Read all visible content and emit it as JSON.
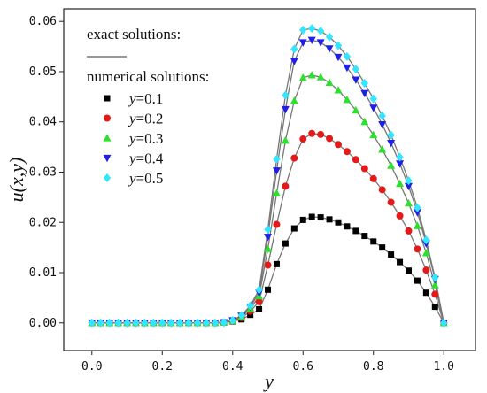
{
  "chart_data": {
    "type": "scatter",
    "xlabel": "y",
    "ylabel": "u(x,y)",
    "xlim": [
      -0.08,
      1.09
    ],
    "ylim": [
      -0.0055,
      0.0625
    ],
    "xticks": [
      0.0,
      0.2,
      0.4,
      0.6,
      0.8,
      1.0
    ],
    "xtick_labels": [
      "0.0",
      "0.2",
      "0.4",
      "0.6",
      "0.8",
      "1.0"
    ],
    "yticks": [
      0.0,
      0.01,
      0.02,
      0.03,
      0.04,
      0.05,
      0.06
    ],
    "ytick_labels": [
      "0.00",
      "0.01",
      "0.02",
      "0.03",
      "0.04",
      "0.05",
      "0.06"
    ],
    "grid": false,
    "legend_position": "top-left",
    "legend": {
      "exact_label": "exact solutions:",
      "numerical_label": "numerical solutions:"
    },
    "exact_line_color": "#777777",
    "x": [
      0.0,
      0.025,
      0.05,
      0.075,
      0.1,
      0.125,
      0.15,
      0.175,
      0.2,
      0.225,
      0.25,
      0.275,
      0.3,
      0.325,
      0.35,
      0.375,
      0.4,
      0.425,
      0.45,
      0.475,
      0.5,
      0.525,
      0.55,
      0.575,
      0.6,
      0.625,
      0.65,
      0.675,
      0.7,
      0.725,
      0.75,
      0.775,
      0.8,
      0.825,
      0.85,
      0.875,
      0.9,
      0.925,
      0.95,
      0.975,
      1.0
    ],
    "series": [
      {
        "name": "0.1",
        "marker": "square",
        "color": "#000000",
        "values": [
          0,
          0,
          0,
          0,
          0,
          0,
          0,
          0,
          0,
          0,
          0,
          0,
          0,
          0,
          0,
          0.0001,
          0.0003,
          0.0007,
          0.0016,
          0.0027,
          0.0066,
          0.0117,
          0.0158,
          0.0188,
          0.0205,
          0.0211,
          0.021,
          0.0206,
          0.02,
          0.0192,
          0.0183,
          0.0173,
          0.0162,
          0.015,
          0.0136,
          0.0121,
          0.0104,
          0.0084,
          0.006,
          0.0032,
          0
        ]
      },
      {
        "name": "0.2",
        "marker": "circle",
        "color": "#e41a1a",
        "values": [
          0,
          0,
          0,
          0,
          0,
          0,
          0,
          0,
          0,
          0,
          0,
          0,
          0,
          0,
          0,
          0.0001,
          0.0003,
          0.001,
          0.0023,
          0.0042,
          0.0115,
          0.0196,
          0.0272,
          0.0328,
          0.0366,
          0.0377,
          0.0375,
          0.0367,
          0.0355,
          0.0341,
          0.0325,
          0.0307,
          0.0287,
          0.0265,
          0.024,
          0.0213,
          0.0183,
          0.0147,
          0.0105,
          0.0057,
          0
        ]
      },
      {
        "name": "0.3",
        "marker": "triangle-up",
        "color": "#2ee02e",
        "values": [
          0,
          0,
          0,
          0,
          0,
          0,
          0,
          0,
          0,
          0,
          0,
          0,
          0,
          0,
          0,
          0.0001,
          0.0004,
          0.0012,
          0.0028,
          0.0053,
          0.0147,
          0.0258,
          0.0363,
          0.0442,
          0.0488,
          0.0493,
          0.0489,
          0.0478,
          0.0463,
          0.0444,
          0.0423,
          0.04,
          0.0374,
          0.0345,
          0.0313,
          0.0277,
          0.0238,
          0.0193,
          0.0139,
          0.0075,
          0
        ]
      },
      {
        "name": "0.4",
        "marker": "triangle-down",
        "color": "#1f1fe6",
        "values": [
          0,
          0,
          0,
          0,
          0,
          0,
          0,
          0,
          0,
          0,
          0,
          0,
          0,
          0,
          0,
          0.0001,
          0.0005,
          0.0014,
          0.0032,
          0.006,
          0.0171,
          0.0303,
          0.0425,
          0.0521,
          0.0558,
          0.0563,
          0.0558,
          0.0546,
          0.0529,
          0.0508,
          0.0484,
          0.0457,
          0.0428,
          0.0395,
          0.0358,
          0.0317,
          0.0272,
          0.022,
          0.0158,
          0.0087,
          0
        ]
      },
      {
        "name": "0.5",
        "marker": "diamond",
        "color": "#33e6ff",
        "values": [
          0,
          0,
          0,
          0,
          0,
          0,
          0,
          0,
          0,
          0,
          0,
          0,
          0,
          0,
          0,
          0.0001,
          0.0005,
          0.0015,
          0.0034,
          0.0066,
          0.0186,
          0.0326,
          0.0453,
          0.0545,
          0.0583,
          0.0586,
          0.0581,
          0.0569,
          0.0552,
          0.053,
          0.0505,
          0.0477,
          0.0446,
          0.0412,
          0.0374,
          0.033,
          0.0283,
          0.0229,
          0.0165,
          0.009,
          0
        ]
      }
    ]
  }
}
